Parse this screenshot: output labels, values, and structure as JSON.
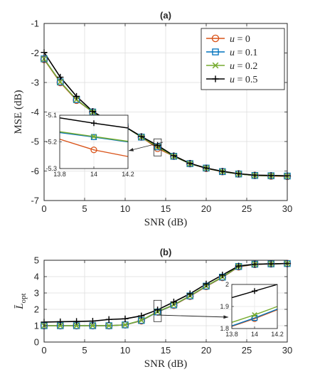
{
  "colors": {
    "u0": "#D95319",
    "u01": "#0072BD",
    "u02": "#77AC30",
    "u05": "#000000"
  },
  "chart_data": [
    {
      "type": "line",
      "title": "(a)",
      "xlabel": "SNR (dB)",
      "ylabel": "MSE (dB)",
      "xlim": [
        0,
        30
      ],
      "ylim": [
        -7,
        -1
      ],
      "xticks": [
        "0",
        "5",
        "10",
        "15",
        "20",
        "25",
        "30"
      ],
      "yticks": [
        "-1",
        "-2",
        "-3",
        "-4",
        "-5",
        "-6",
        "-7"
      ],
      "grid": true,
      "legend_position": "top-right",
      "x": [
        0,
        2,
        4,
        6,
        8,
        10,
        12,
        14,
        16,
        18,
        20,
        22,
        24,
        26,
        28,
        30
      ],
      "series": [
        {
          "name": "u = 0",
          "marker": "circle",
          "values": [
            -2.22,
            -3.0,
            -3.6,
            -4.0,
            -4.32,
            -4.5,
            -4.85,
            -5.23,
            -5.5,
            -5.75,
            -5.91,
            -6.02,
            -6.1,
            -6.15,
            -6.17,
            -6.18
          ]
        },
        {
          "name": "u = 0.1",
          "marker": "square",
          "values": [
            -2.2,
            -2.98,
            -3.58,
            -4.0,
            -4.31,
            -4.5,
            -4.85,
            -5.18,
            -5.5,
            -5.75,
            -5.9,
            -6.02,
            -6.1,
            -6.15,
            -6.16,
            -6.17
          ]
        },
        {
          "name": "u = 0.2",
          "marker": "x",
          "values": [
            -2.2,
            -2.98,
            -3.58,
            -4.0,
            -4.31,
            -4.5,
            -4.85,
            -5.18,
            -5.5,
            -5.75,
            -5.9,
            -6.02,
            -6.1,
            -6.15,
            -6.16,
            -6.17
          ]
        },
        {
          "name": "u = 0.5",
          "marker": "plus",
          "values": [
            -1.98,
            -2.82,
            -3.47,
            -3.98,
            -4.3,
            -4.5,
            -4.83,
            -5.13,
            -5.48,
            -5.74,
            -5.9,
            -6.01,
            -6.09,
            -6.14,
            -6.15,
            -6.16
          ]
        }
      ],
      "inset": {
        "xlim": [
          13.8,
          14.2
        ],
        "ylim": [
          -5.3,
          -5.1
        ],
        "xticks": [
          "13.8",
          "14",
          "14.2"
        ],
        "yticks": [
          "-5.1",
          "-5.2",
          "-5.3"
        ],
        "x": [
          13.8,
          14,
          14.2
        ],
        "series": [
          {
            "name": "u = 0",
            "values": [
              -5.19,
              -5.23,
              -5.255
            ]
          },
          {
            "name": "u = 0.1",
            "values": [
              -5.165,
              -5.182,
              -5.2
            ]
          },
          {
            "name": "u = 0.2",
            "values": [
              -5.162,
              -5.18,
              -5.198
            ]
          },
          {
            "name": "u = 0.5",
            "values": [
              -5.11,
              -5.13,
              -5.148
            ]
          }
        ]
      }
    },
    {
      "type": "line",
      "title": "(b)",
      "xlabel": "SNR (dB)",
      "ylabel": "L̄opt",
      "xlim": [
        0,
        30
      ],
      "ylim": [
        0,
        5
      ],
      "xticks": [
        "0",
        "5",
        "10",
        "15",
        "20",
        "25",
        "30"
      ],
      "yticks": [
        "5",
        "4",
        "3",
        "2",
        "1",
        "0"
      ],
      "grid": true,
      "x": [
        0,
        2,
        4,
        6,
        8,
        10,
        12,
        14,
        16,
        18,
        20,
        22,
        24,
        26,
        28,
        30
      ],
      "series": [
        {
          "name": "u = 0",
          "marker": "circle",
          "values": [
            1.0,
            1.0,
            1.0,
            1.0,
            1.0,
            1.05,
            1.3,
            1.84,
            2.25,
            2.8,
            3.4,
            3.95,
            4.6,
            4.75,
            4.78,
            4.8
          ]
        },
        {
          "name": "u = 0.1",
          "marker": "square",
          "values": [
            1.0,
            1.0,
            1.0,
            1.0,
            1.0,
            1.05,
            1.32,
            1.84,
            2.27,
            2.82,
            3.42,
            3.97,
            4.62,
            4.76,
            4.78,
            4.8
          ]
        },
        {
          "name": "u = 0.2",
          "marker": "x",
          "values": [
            1.0,
            1.0,
            1.0,
            1.0,
            1.0,
            1.05,
            1.33,
            1.86,
            2.28,
            2.83,
            3.43,
            3.98,
            4.63,
            4.76,
            4.78,
            4.8
          ]
        },
        {
          "name": "u = 0.5",
          "marker": "plus",
          "values": [
            1.22,
            1.24,
            1.26,
            1.28,
            1.38,
            1.42,
            1.6,
            1.97,
            2.45,
            2.95,
            3.55,
            4.1,
            4.65,
            4.76,
            4.78,
            4.8
          ]
        }
      ],
      "inset": {
        "xlim": [
          13.8,
          14.2
        ],
        "ylim": [
          1.8,
          2.0
        ],
        "xticks": [
          "13.8",
          "14",
          "14.2"
        ],
        "yticks": [
          "2",
          "1.9",
          "1.8"
        ],
        "x": [
          13.8,
          14,
          14.2
        ],
        "series": [
          {
            "name": "u = 0",
            "values": [
              1.81,
              1.845,
              1.885
            ]
          },
          {
            "name": "u = 0.1",
            "values": [
              1.812,
              1.848,
              1.888
            ]
          },
          {
            "name": "u = 0.2",
            "values": [
              1.828,
              1.862,
              1.9
            ]
          },
          {
            "name": "u = 0.5",
            "values": [
              1.94,
              1.97,
              2.0
            ]
          }
        ]
      }
    }
  ]
}
